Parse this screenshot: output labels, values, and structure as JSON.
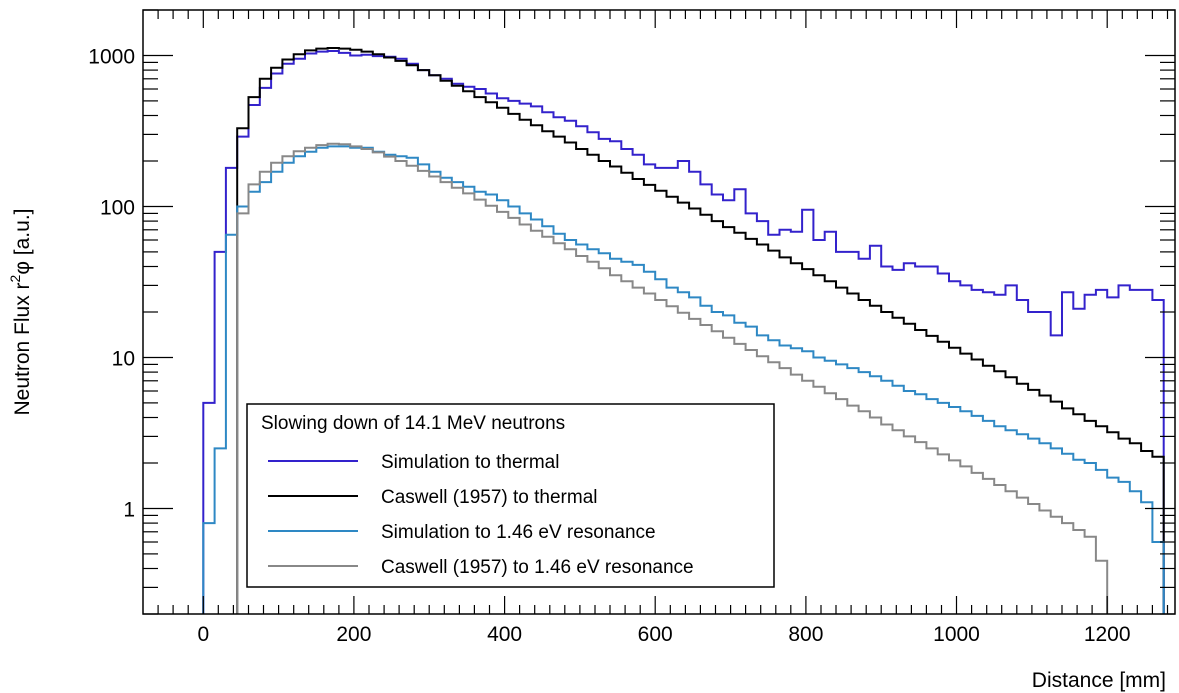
{
  "chart_data": {
    "type": "line",
    "subtype": "step-histogram",
    "xlabel": "Distance [mm]",
    "ylabel_parts": [
      "Neutron Flux r",
      "2",
      "φ [a.u.]"
    ],
    "xlim": [
      -80,
      1290
    ],
    "ylim": [
      0.2,
      2000
    ],
    "yscale": "log",
    "grid": false,
    "bin_width": 15,
    "x_ticks": [
      0,
      200,
      400,
      600,
      800,
      1000,
      1200
    ],
    "x_tick_labels": [
      "0",
      "200",
      "400",
      "600",
      "800",
      "1000",
      "1200"
    ],
    "y_ticks": [
      1,
      10,
      100,
      1000
    ],
    "y_tick_labels": [
      "1",
      "10",
      "100",
      "1000"
    ],
    "legend": {
      "title": "Slowing down of 14.1 MeV neutrons",
      "placement": "lower-left"
    },
    "series": [
      {
        "name": "Simulation to thermal",
        "color": "#3322cc",
        "x": [
          0,
          15,
          30,
          45,
          60,
          75,
          90,
          105,
          120,
          135,
          150,
          165,
          180,
          195,
          210,
          225,
          240,
          255,
          270,
          285,
          300,
          315,
          330,
          345,
          360,
          375,
          390,
          405,
          420,
          435,
          450,
          465,
          480,
          495,
          510,
          525,
          540,
          555,
          570,
          585,
          600,
          615,
          630,
          645,
          660,
          675,
          690,
          705,
          720,
          735,
          750,
          765,
          780,
          795,
          810,
          825,
          840,
          855,
          870,
          885,
          900,
          915,
          930,
          945,
          960,
          975,
          990,
          1005,
          1020,
          1035,
          1050,
          1065,
          1080,
          1095,
          1110,
          1125,
          1140,
          1155,
          1170,
          1185,
          1200,
          1215,
          1230,
          1245,
          1260
        ],
        "y": [
          5,
          50,
          180,
          290,
          470,
          610,
          760,
          880,
          950,
          1030,
          1060,
          1070,
          1040,
          1000,
          1010,
          990,
          980,
          950,
          880,
          800,
          740,
          700,
          650,
          620,
          600,
          560,
          520,
          500,
          480,
          460,
          420,
          390,
          370,
          340,
          310,
          280,
          270,
          240,
          220,
          190,
          180,
          180,
          200,
          170,
          140,
          120,
          110,
          130,
          90,
          80,
          65,
          70,
          68,
          95,
          60,
          68,
          50,
          50,
          45,
          55,
          40,
          38,
          42,
          40,
          40,
          36,
          32,
          30,
          28,
          27,
          26,
          30,
          24,
          20,
          20,
          14,
          27,
          21,
          26,
          28,
          25,
          30,
          28,
          28,
          24
        ]
      },
      {
        "name": "Caswell (1957) to thermal",
        "color": "#000000",
        "x": [
          45,
          60,
          75,
          90,
          105,
          120,
          135,
          150,
          165,
          180,
          195,
          210,
          225,
          240,
          255,
          270,
          285,
          300,
          315,
          330,
          345,
          360,
          375,
          390,
          405,
          420,
          435,
          450,
          465,
          480,
          495,
          510,
          525,
          540,
          555,
          570,
          585,
          600,
          615,
          630,
          645,
          660,
          675,
          690,
          705,
          720,
          735,
          750,
          765,
          780,
          795,
          810,
          825,
          840,
          855,
          870,
          885,
          900,
          915,
          930,
          945,
          960,
          975,
          990,
          1005,
          1020,
          1035,
          1050,
          1065,
          1080,
          1095,
          1110,
          1125,
          1140,
          1155,
          1170,
          1185,
          1200,
          1215,
          1230,
          1245,
          1260
        ],
        "y": [
          330,
          530,
          700,
          830,
          940,
          1020,
          1080,
          1110,
          1120,
          1110,
          1090,
          1060,
          1020,
          970,
          920,
          860,
          800,
          740,
          680,
          630,
          580,
          530,
          490,
          450,
          410,
          375,
          345,
          315,
          290,
          265,
          240,
          220,
          200,
          184,
          167,
          152,
          139,
          127,
          116,
          106,
          97,
          88,
          80,
          73,
          67,
          61,
          56,
          51,
          46,
          42,
          38.5,
          35,
          32,
          29,
          26.5,
          24,
          22,
          20,
          18.3,
          16.7,
          15.2,
          13.9,
          12.7,
          11.6,
          10.6,
          9.7,
          8.8,
          8.1,
          7.4,
          6.7,
          6.1,
          5.6,
          5.1,
          4.6,
          4.2,
          3.8,
          3.5,
          3.2,
          2.9,
          2.7,
          2.4,
          2.2
        ]
      },
      {
        "name": "Simulation to 1.46 eV resonance",
        "color": "#2e88c4",
        "x": [
          0,
          15,
          30,
          45,
          60,
          75,
          90,
          105,
          120,
          135,
          150,
          165,
          180,
          195,
          210,
          225,
          240,
          255,
          270,
          285,
          300,
          315,
          330,
          345,
          360,
          375,
          390,
          405,
          420,
          435,
          450,
          465,
          480,
          495,
          510,
          525,
          540,
          555,
          570,
          585,
          600,
          615,
          630,
          645,
          660,
          675,
          690,
          705,
          720,
          735,
          750,
          765,
          780,
          795,
          810,
          825,
          840,
          855,
          870,
          885,
          900,
          915,
          930,
          945,
          960,
          975,
          990,
          1005,
          1020,
          1035,
          1050,
          1065,
          1080,
          1095,
          1110,
          1125,
          1140,
          1155,
          1170,
          1185,
          1200,
          1215,
          1230,
          1245,
          1260
        ],
        "y": [
          0.8,
          2.5,
          65,
          100,
          125,
          145,
          170,
          195,
          215,
          230,
          245,
          250,
          250,
          245,
          245,
          230,
          220,
          215,
          210,
          190,
          170,
          155,
          145,
          135,
          125,
          120,
          110,
          100,
          90,
          82,
          74,
          66,
          60,
          56,
          52,
          49,
          45,
          43,
          41,
          37,
          33,
          29,
          27,
          25,
          22,
          20,
          19,
          17,
          16,
          14,
          13,
          12,
          11.5,
          11,
          10,
          9.5,
          9,
          8.5,
          8,
          7.5,
          7,
          6.5,
          6,
          5.7,
          5.3,
          5,
          4.7,
          4.4,
          4.1,
          3.8,
          3.5,
          3.3,
          3.1,
          2.9,
          2.7,
          2.5,
          2.3,
          2.1,
          2,
          1.8,
          1.6,
          1.5,
          1.3,
          1.1,
          0.6
        ]
      },
      {
        "name": "Caswell (1957) to 1.46 eV resonance",
        "color": "#888888",
        "x": [
          45,
          60,
          75,
          90,
          105,
          120,
          135,
          150,
          165,
          180,
          195,
          210,
          225,
          240,
          255,
          270,
          285,
          300,
          315,
          330,
          345,
          360,
          375,
          390,
          405,
          420,
          435,
          450,
          465,
          480,
          495,
          510,
          525,
          540,
          555,
          570,
          585,
          600,
          615,
          630,
          645,
          660,
          675,
          690,
          705,
          720,
          735,
          750,
          765,
          780,
          795,
          810,
          825,
          840,
          855,
          870,
          885,
          900,
          915,
          930,
          945,
          960,
          975,
          990,
          1005,
          1020,
          1035,
          1050,
          1065,
          1080,
          1095,
          1110,
          1125,
          1140,
          1155,
          1170,
          1185
        ],
        "y": [
          90,
          140,
          170,
          195,
          215,
          232,
          245,
          255,
          260,
          258,
          250,
          240,
          228,
          214,
          200,
          186,
          172,
          158,
          145,
          133,
          122,
          111,
          101,
          92,
          84,
          76,
          69,
          63,
          57,
          52,
          47,
          43,
          39,
          35,
          32,
          29,
          26.5,
          24,
          21.8,
          19.8,
          18,
          16.4,
          14.9,
          13.5,
          12.3,
          11.2,
          10.2,
          9.3,
          8.5,
          7.7,
          7,
          6.4,
          5.8,
          5.3,
          4.8,
          4.4,
          4,
          3.6,
          3.3,
          3,
          2.75,
          2.5,
          2.28,
          2.08,
          1.9,
          1.72,
          1.57,
          1.43,
          1.3,
          1.18,
          1.07,
          0.97,
          0.88,
          0.8,
          0.72,
          0.65,
          0.45
        ]
      }
    ]
  }
}
